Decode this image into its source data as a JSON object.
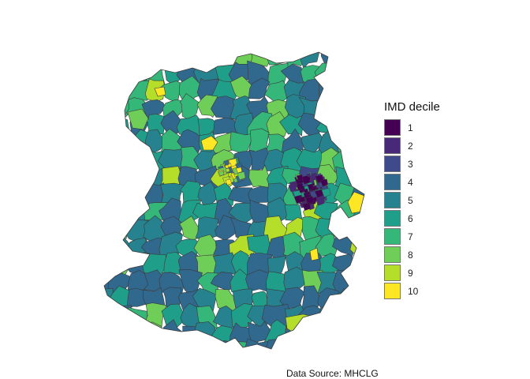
{
  "legend": {
    "title": "IMD decile",
    "items": [
      {
        "label": "1",
        "color": "#440154"
      },
      {
        "label": "2",
        "color": "#482878"
      },
      {
        "label": "3",
        "color": "#3e4a89"
      },
      {
        "label": "4",
        "color": "#31688e"
      },
      {
        "label": "5",
        "color": "#26828e"
      },
      {
        "label": "6",
        "color": "#1f9e89"
      },
      {
        "label": "7",
        "color": "#35b779"
      },
      {
        "label": "8",
        "color": "#6ece58"
      },
      {
        "label": "9",
        "color": "#b5de2b"
      },
      {
        "label": "10",
        "color": "#fde725"
      }
    ]
  },
  "caption": "Data Source: MHCLG",
  "map": {
    "border_color": "#3a3a3a",
    "background": "#ffffff"
  }
}
